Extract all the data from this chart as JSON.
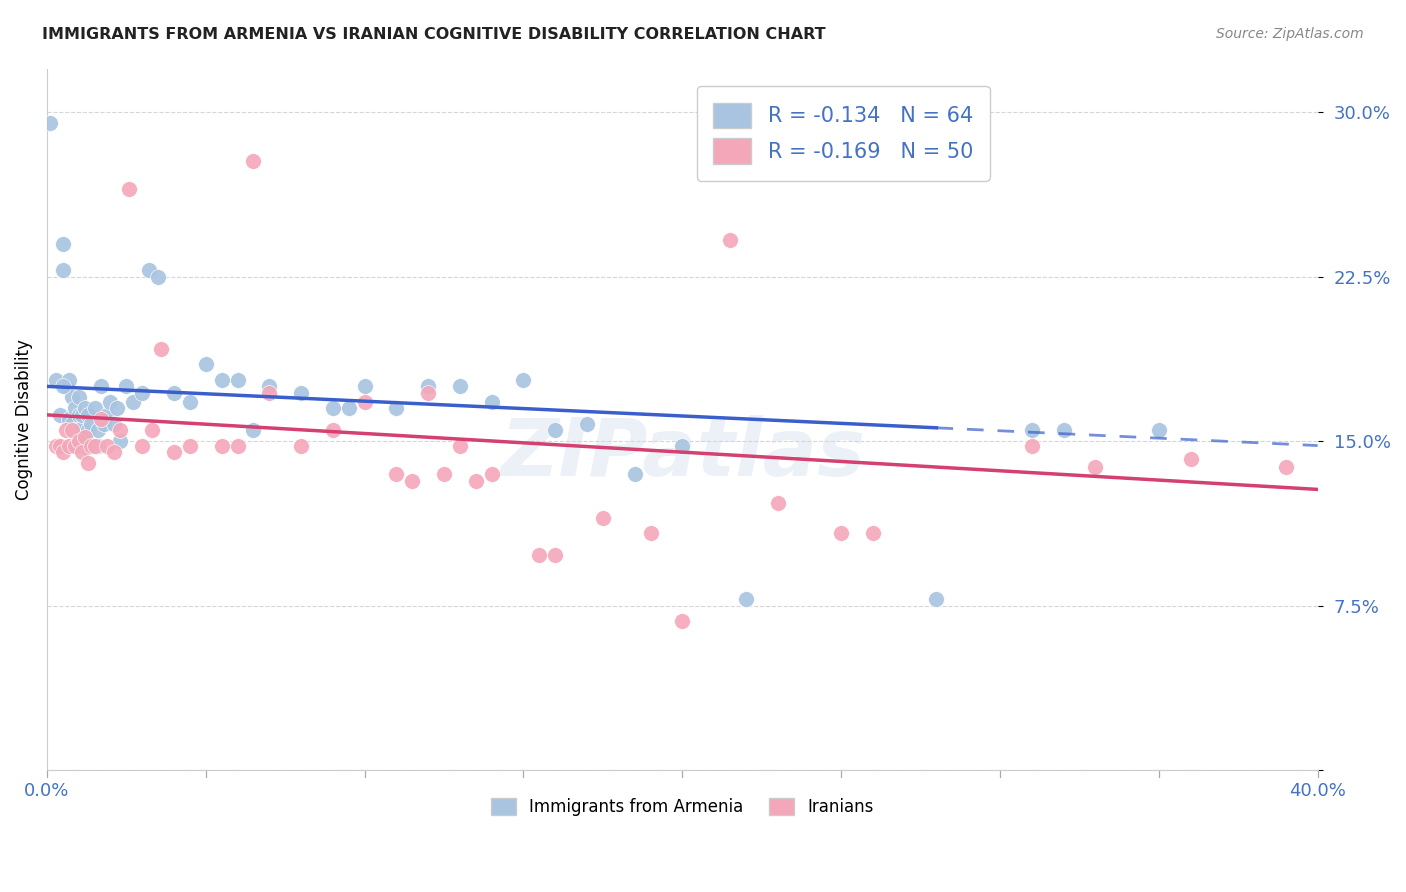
{
  "title": "IMMIGRANTS FROM ARMENIA VS IRANIAN COGNITIVE DISABILITY CORRELATION CHART",
  "source": "Source: ZipAtlas.com",
  "ylabel": "Cognitive Disability",
  "xlim": [
    0.0,
    0.4
  ],
  "ylim": [
    0.0,
    0.32
  ],
  "xticks": [
    0.0,
    0.05,
    0.1,
    0.15,
    0.2,
    0.25,
    0.3,
    0.35,
    0.4
  ],
  "yticks": [
    0.0,
    0.075,
    0.15,
    0.225,
    0.3
  ],
  "series1_color": "#a8c4e0",
  "series2_color": "#f4a7b9",
  "line1_color": "#3a5fcd",
  "line2_color": "#d44070",
  "R1": -0.134,
  "N1": 64,
  "R2": -0.169,
  "N2": 50,
  "series1_label": "Immigrants from Armenia",
  "series2_label": "Iranians",
  "armenia_x": [
    0.001,
    0.003,
    0.004,
    0.005,
    0.005,
    0.006,
    0.007,
    0.007,
    0.008,
    0.008,
    0.009,
    0.009,
    0.01,
    0.01,
    0.01,
    0.011,
    0.011,
    0.012,
    0.012,
    0.013,
    0.013,
    0.014,
    0.014,
    0.015,
    0.016,
    0.016,
    0.017,
    0.018,
    0.019,
    0.02,
    0.021,
    0.022,
    0.023,
    0.025,
    0.027,
    0.03,
    0.032,
    0.035,
    0.04,
    0.045,
    0.05,
    0.055,
    0.06,
    0.065,
    0.07,
    0.08,
    0.09,
    0.095,
    0.1,
    0.11,
    0.12,
    0.13,
    0.14,
    0.15,
    0.16,
    0.17,
    0.185,
    0.2,
    0.22,
    0.28,
    0.31,
    0.32,
    0.35,
    0.005
  ],
  "armenia_y": [
    0.295,
    0.178,
    0.162,
    0.24,
    0.228,
    0.175,
    0.178,
    0.16,
    0.17,
    0.158,
    0.165,
    0.155,
    0.17,
    0.162,
    0.155,
    0.162,
    0.152,
    0.165,
    0.148,
    0.162,
    0.155,
    0.158,
    0.148,
    0.165,
    0.155,
    0.148,
    0.175,
    0.158,
    0.162,
    0.168,
    0.158,
    0.165,
    0.15,
    0.175,
    0.168,
    0.172,
    0.228,
    0.225,
    0.172,
    0.168,
    0.185,
    0.178,
    0.178,
    0.155,
    0.175,
    0.172,
    0.165,
    0.165,
    0.175,
    0.165,
    0.175,
    0.175,
    0.168,
    0.178,
    0.155,
    0.158,
    0.135,
    0.148,
    0.078,
    0.078,
    0.155,
    0.155,
    0.155,
    0.175
  ],
  "iranian_x": [
    0.003,
    0.004,
    0.005,
    0.006,
    0.007,
    0.008,
    0.009,
    0.01,
    0.011,
    0.012,
    0.013,
    0.014,
    0.015,
    0.017,
    0.019,
    0.021,
    0.023,
    0.026,
    0.03,
    0.033,
    0.036,
    0.04,
    0.045,
    0.055,
    0.06,
    0.065,
    0.07,
    0.08,
    0.09,
    0.1,
    0.11,
    0.115,
    0.12,
    0.125,
    0.13,
    0.135,
    0.14,
    0.155,
    0.16,
    0.175,
    0.19,
    0.2,
    0.215,
    0.23,
    0.25,
    0.26,
    0.31,
    0.33,
    0.36,
    0.39
  ],
  "iranian_y": [
    0.148,
    0.148,
    0.145,
    0.155,
    0.148,
    0.155,
    0.148,
    0.15,
    0.145,
    0.152,
    0.14,
    0.148,
    0.148,
    0.16,
    0.148,
    0.145,
    0.155,
    0.265,
    0.148,
    0.155,
    0.192,
    0.145,
    0.148,
    0.148,
    0.148,
    0.278,
    0.172,
    0.148,
    0.155,
    0.168,
    0.135,
    0.132,
    0.172,
    0.135,
    0.148,
    0.132,
    0.135,
    0.098,
    0.098,
    0.115,
    0.108,
    0.068,
    0.242,
    0.122,
    0.108,
    0.108,
    0.148,
    0.138,
    0.142,
    0.138
  ],
  "line1_x0": 0.0,
  "line1_y0": 0.175,
  "line1_x1": 0.4,
  "line1_y1": 0.148,
  "line1_solid_end": 0.28,
  "line2_x0": 0.0,
  "line2_y0": 0.162,
  "line2_x1": 0.4,
  "line2_y1": 0.128,
  "watermark": "ZIPatlas",
  "watermark_color": "#c8d8ea"
}
